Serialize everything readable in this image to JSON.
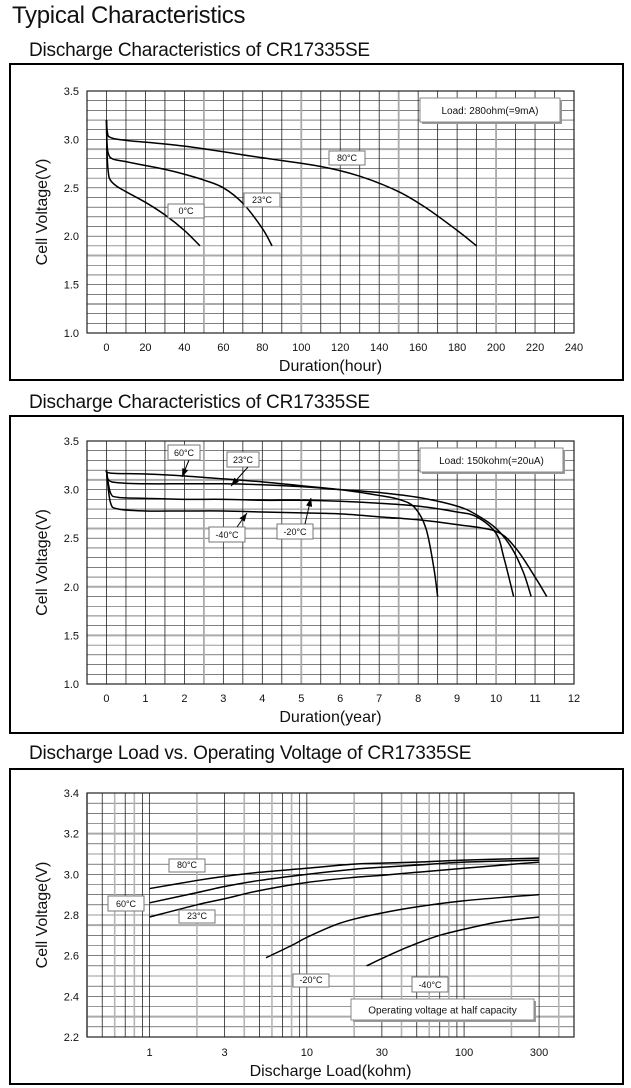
{
  "page": {
    "title": "Typical Characteristics"
  },
  "chart_data": [
    {
      "type": "line",
      "title": "Discharge Characteristics of CR17335SE",
      "xlabel": "Duration(hour)",
      "ylabel": "Cell Voltage(V)",
      "xlim": [
        -10,
        240
      ],
      "ylim": [
        1.0,
        3.5
      ],
      "xscale": "linear",
      "xticks": [
        0,
        20,
        40,
        60,
        80,
        100,
        120,
        140,
        160,
        180,
        200,
        220,
        240
      ],
      "yticks": [
        "1.0",
        "1.5",
        "2.0",
        "2.5",
        "3.0",
        "3.5"
      ],
      "grid": true,
      "annotation": "Load:  280ohm(=9mA)",
      "annotation_position": "top-right",
      "series": [
        {
          "name": "0°C",
          "label": "0°C",
          "x": [
            0,
            0.3,
            1,
            2,
            5,
            10,
            20,
            30,
            40,
            48
          ],
          "y": [
            3.2,
            2.85,
            2.65,
            2.58,
            2.52,
            2.46,
            2.35,
            2.22,
            2.06,
            1.9
          ]
        },
        {
          "name": "23°C",
          "label": "23°C",
          "x": [
            0,
            0.3,
            1,
            3,
            10,
            20,
            30,
            40,
            50,
            60,
            70,
            80,
            85
          ],
          "y": [
            3.2,
            2.95,
            2.85,
            2.8,
            2.77,
            2.73,
            2.69,
            2.64,
            2.58,
            2.5,
            2.34,
            2.08,
            1.9
          ]
        },
        {
          "name": "80°C",
          "label": "80°C",
          "x": [
            0,
            0.5,
            2,
            10,
            40,
            80,
            110,
            130,
            150,
            165,
            180,
            190
          ],
          "y": [
            3.2,
            3.07,
            3.02,
            2.99,
            2.93,
            2.81,
            2.72,
            2.62,
            2.46,
            2.28,
            2.06,
            1.9
          ]
        }
      ]
    },
    {
      "type": "line",
      "title": "Discharge Characteristics of CR17335SE",
      "xlabel": "Duration(year)",
      "ylabel": "Cell Voltage(V)",
      "xlim": [
        -0.5,
        12
      ],
      "ylim": [
        1.0,
        3.5
      ],
      "xscale": "linear",
      "xticks": [
        0,
        1,
        2,
        3,
        4,
        5,
        6,
        7,
        8,
        9,
        10,
        11,
        12
      ],
      "yticks": [
        "1.0",
        "1.5",
        "2.0",
        "2.5",
        "3.0",
        "3.5"
      ],
      "grid": true,
      "annotation": "Load:  150kohm(=20uA)",
      "annotation_position": "top-right",
      "series": [
        {
          "name": "60°C",
          "label": "60°C",
          "x": [
            0,
            0.1,
            1,
            2,
            3,
            4,
            5,
            6,
            7,
            7.5,
            7.9,
            8.2,
            8.4,
            8.5
          ],
          "y": [
            3.2,
            3.17,
            3.16,
            3.14,
            3.11,
            3.08,
            3.04,
            3.0,
            2.94,
            2.9,
            2.82,
            2.6,
            2.2,
            1.9
          ]
        },
        {
          "name": "23°C",
          "label": "23°C",
          "x": [
            0,
            0.05,
            0.3,
            1,
            2,
            3,
            4,
            5,
            6,
            7,
            8,
            9,
            9.5,
            10,
            10.4,
            10.7,
            10.9
          ],
          "y": [
            3.2,
            3.1,
            3.07,
            3.06,
            3.06,
            3.06,
            3.05,
            3.03,
            3.0,
            2.97,
            2.92,
            2.83,
            2.74,
            2.6,
            2.4,
            2.15,
            1.9
          ]
        },
        {
          "name": "-20°C",
          "label": "-20°C",
          "x": [
            0,
            0.1,
            0.3,
            1,
            2,
            3,
            4,
            5,
            6,
            7,
            8,
            9,
            9.5,
            10,
            10.2,
            10.45
          ],
          "y": [
            3.2,
            2.97,
            2.92,
            2.91,
            2.9,
            2.9,
            2.89,
            2.89,
            2.88,
            2.86,
            2.83,
            2.77,
            2.72,
            2.55,
            2.3,
            1.9
          ]
        },
        {
          "name": "-40°C",
          "label": "-40°C",
          "x": [
            0,
            0.1,
            0.3,
            1,
            2,
            3,
            4,
            5,
            6,
            7,
            8,
            9,
            10,
            10.5,
            11,
            11.3
          ],
          "y": [
            3.2,
            2.87,
            2.8,
            2.78,
            2.78,
            2.78,
            2.77,
            2.76,
            2.75,
            2.72,
            2.69,
            2.64,
            2.57,
            2.4,
            2.1,
            1.9
          ]
        }
      ]
    },
    {
      "type": "line",
      "title": "Discharge Load vs. Operating Voltage of CR17335SE",
      "xlabel": "Discharge Load(kohm)",
      "ylabel": "Cell Voltage(V)",
      "xlim": [
        0.4,
        500
      ],
      "ylim": [
        2.2,
        3.4
      ],
      "xscale": "log",
      "xticks": [
        "1",
        "3",
        "10",
        "30",
        "100",
        "300"
      ],
      "xtick_values": [
        1,
        3,
        10,
        30,
        100,
        300
      ],
      "yticks": [
        "2.2",
        "2.4",
        "2.6",
        "2.8",
        "3.0",
        "3.2",
        "3.4"
      ],
      "grid": true,
      "annotation": "Operating voltage at half capacity",
      "annotation_position": "bottom-right",
      "series": [
        {
          "name": "80°C",
          "label": "80°C",
          "x": [
            1,
            2,
            3,
            5,
            10,
            20,
            30,
            50,
            100,
            300
          ],
          "y": [
            2.93,
            2.97,
            2.99,
            3.01,
            3.03,
            3.05,
            3.055,
            3.06,
            3.07,
            3.08
          ]
        },
        {
          "name": "60°C",
          "label": "60°C",
          "x": [
            1,
            2,
            3,
            5,
            10,
            20,
            30,
            50,
            100,
            300
          ],
          "y": [
            2.86,
            2.91,
            2.94,
            2.97,
            3.0,
            3.025,
            3.035,
            3.045,
            3.06,
            3.07
          ]
        },
        {
          "name": "23°C",
          "label": "23°C",
          "x": [
            1,
            2,
            3,
            5,
            10,
            20,
            30,
            50,
            100,
            300
          ],
          "y": [
            2.79,
            2.85,
            2.88,
            2.92,
            2.96,
            2.985,
            2.995,
            3.01,
            3.03,
            3.06
          ]
        },
        {
          "name": "-20°C",
          "label": "-20°C",
          "x": [
            5.5,
            8,
            10,
            15,
            20,
            30,
            50,
            100,
            200,
            300
          ],
          "y": [
            2.59,
            2.65,
            2.69,
            2.75,
            2.78,
            2.81,
            2.84,
            2.87,
            2.89,
            2.9
          ]
        },
        {
          "name": "-40°C",
          "label": "-40°C",
          "x": [
            24,
            35,
            50,
            70,
            100,
            150,
            200,
            300
          ],
          "y": [
            2.55,
            2.61,
            2.66,
            2.7,
            2.73,
            2.76,
            2.775,
            2.79
          ]
        }
      ]
    }
  ]
}
